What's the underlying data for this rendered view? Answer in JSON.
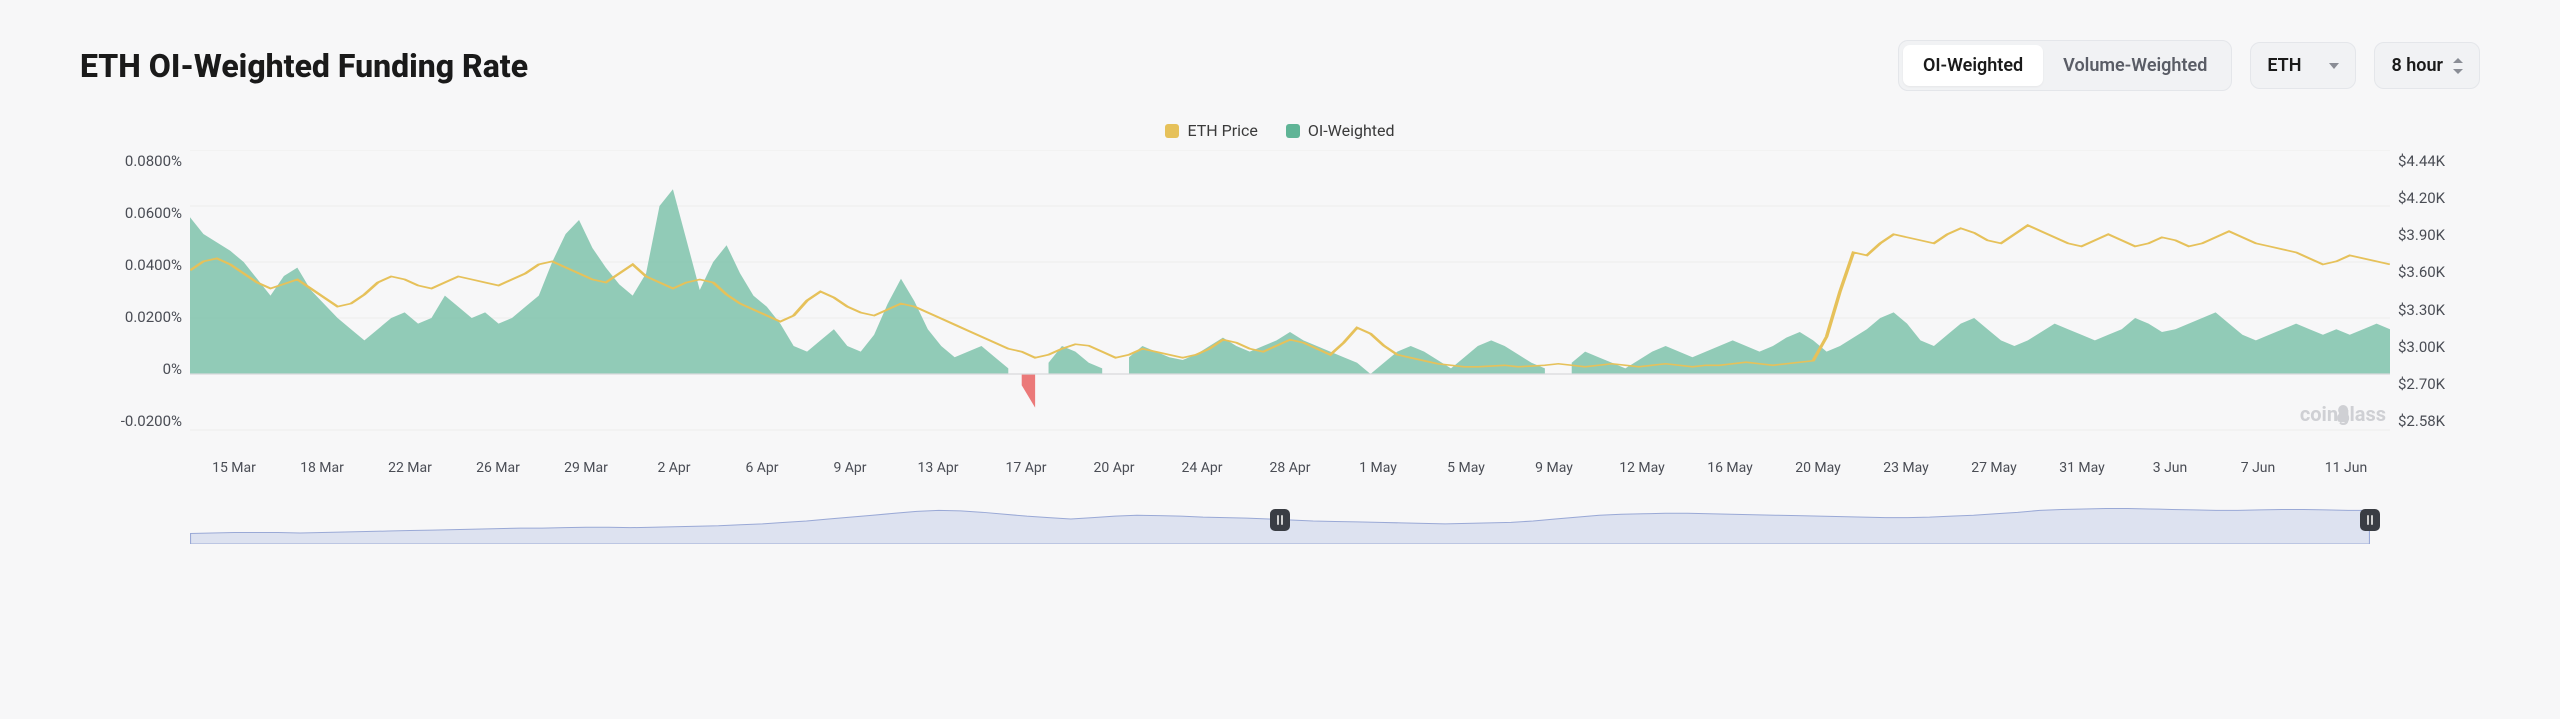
{
  "title": "ETH OI-Weighted Funding Rate",
  "controls": {
    "toggle": {
      "options": [
        "OI-Weighted",
        "Volume-Weighted"
      ],
      "active_index": 0
    },
    "symbol": {
      "value": "ETH"
    },
    "interval": {
      "value": "8 hour"
    }
  },
  "legend": [
    {
      "label": "ETH Price",
      "color": "#e6c15a"
    },
    {
      "label": "OI-Weighted",
      "color": "#5fb496"
    }
  ],
  "watermark": "coinglass",
  "chart": {
    "type": "combo-area-line",
    "background_color": "#f7f7f8",
    "grid_color": "#eceded",
    "baseline_color": "#d8d9dc",
    "left_axis": {
      "label_suffix": "%",
      "ticks": [
        "0.0800%",
        "0.0600%",
        "0.0400%",
        "0.0200%",
        "0%",
        "-0.0200%"
      ],
      "min": -0.02,
      "max": 0.08,
      "fontsize": 15,
      "color": "#4a4d55"
    },
    "right_axis": {
      "ticks": [
        "$4.44K",
        "$4.20K",
        "$3.90K",
        "$3.60K",
        "$3.30K",
        "$3.00K",
        "$2.70K",
        "$2.58K"
      ],
      "min": 2580,
      "max": 4440,
      "fontsize": 15,
      "color": "#4a4d55"
    },
    "x_axis": {
      "ticks": [
        "15 Mar",
        "18 Mar",
        "22 Mar",
        "26 Mar",
        "29 Mar",
        "2 Apr",
        "6 Apr",
        "9 Apr",
        "13 Apr",
        "17 Apr",
        "20 Apr",
        "24 Apr",
        "28 Apr",
        "1 May",
        "5 May",
        "9 May",
        "12 May",
        "16 May",
        "20 May",
        "23 May",
        "27 May",
        "31 May",
        "3 Jun",
        "7 Jun",
        "11 Jun"
      ],
      "fontsize": 14,
      "color": "#4a4d55"
    },
    "series": {
      "funding": {
        "type": "area",
        "axis": "left",
        "positive_fill": "#7fc3ac",
        "positive_fill_opacity": 0.85,
        "negative_fill": "#e96a6a",
        "negative_fill_opacity": 0.9,
        "stroke": "none",
        "values": [
          0.056,
          0.05,
          0.047,
          0.044,
          0.04,
          0.034,
          0.028,
          0.035,
          0.038,
          0.03,
          0.025,
          0.02,
          0.016,
          0.012,
          0.016,
          0.02,
          0.022,
          0.018,
          0.02,
          0.028,
          0.024,
          0.02,
          0.022,
          0.018,
          0.02,
          0.024,
          0.028,
          0.04,
          0.05,
          0.055,
          0.045,
          0.038,
          0.032,
          0.028,
          0.036,
          0.06,
          0.066,
          0.048,
          0.03,
          0.04,
          0.046,
          0.036,
          0.028,
          0.024,
          0.018,
          0.01,
          0.008,
          0.012,
          0.016,
          0.01,
          0.008,
          0.014,
          0.025,
          0.034,
          0.026,
          0.016,
          0.01,
          0.006,
          0.008,
          0.01,
          0.006,
          0.002,
          -0.004,
          -0.012,
          0.004,
          0.01,
          0.008,
          0.004,
          0.002,
          -0.004,
          0.006,
          0.01,
          0.008,
          0.006,
          0.005,
          0.007,
          0.01,
          0.013,
          0.01,
          0.008,
          0.01,
          0.012,
          0.015,
          0.012,
          0.01,
          0.008,
          0.006,
          0.004,
          0.0,
          0.004,
          0.008,
          0.01,
          0.008,
          0.005,
          0.002,
          0.006,
          0.01,
          0.012,
          0.01,
          0.007,
          0.004,
          0.002,
          -0.003,
          0.004,
          0.008,
          0.006,
          0.004,
          0.002,
          0.005,
          0.008,
          0.01,
          0.008,
          0.006,
          0.008,
          0.01,
          0.012,
          0.01,
          0.008,
          0.01,
          0.013,
          0.015,
          0.012,
          0.008,
          0.01,
          0.013,
          0.016,
          0.02,
          0.022,
          0.018,
          0.012,
          0.01,
          0.014,
          0.018,
          0.02,
          0.016,
          0.012,
          0.01,
          0.012,
          0.015,
          0.018,
          0.016,
          0.014,
          0.012,
          0.014,
          0.016,
          0.02,
          0.018,
          0.015,
          0.016,
          0.018,
          0.02,
          0.022,
          0.018,
          0.014,
          0.012,
          0.014,
          0.016,
          0.018,
          0.016,
          0.014,
          0.016,
          0.014,
          0.016,
          0.018,
          0.016
        ]
      },
      "price": {
        "type": "line",
        "axis": "right",
        "stroke": "#e6c15a",
        "stroke_width": 1.6,
        "values": [
          3640,
          3700,
          3720,
          3680,
          3620,
          3560,
          3520,
          3550,
          3580,
          3520,
          3460,
          3400,
          3420,
          3480,
          3560,
          3600,
          3580,
          3540,
          3520,
          3560,
          3600,
          3580,
          3560,
          3540,
          3580,
          3620,
          3680,
          3700,
          3660,
          3620,
          3580,
          3560,
          3620,
          3680,
          3600,
          3560,
          3520,
          3560,
          3580,
          3560,
          3480,
          3420,
          3380,
          3340,
          3300,
          3340,
          3440,
          3500,
          3460,
          3400,
          3360,
          3340,
          3380,
          3420,
          3400,
          3360,
          3320,
          3280,
          3240,
          3200,
          3160,
          3120,
          3100,
          3060,
          3080,
          3120,
          3150,
          3140,
          3100,
          3060,
          3080,
          3120,
          3100,
          3080,
          3060,
          3080,
          3120,
          3180,
          3160,
          3120,
          3100,
          3140,
          3180,
          3160,
          3120,
          3080,
          3160,
          3260,
          3220,
          3140,
          3080,
          3060,
          3040,
          3020,
          3010,
          3000,
          3000,
          3005,
          3010,
          3000,
          3005,
          3010,
          3020,
          3010,
          3000,
          3010,
          3020,
          3010,
          3000,
          3010,
          3020,
          3010,
          3000,
          3010,
          3010,
          3020,
          3030,
          3020,
          3010,
          3020,
          3030,
          3040,
          3200,
          3500,
          3760,
          3740,
          3820,
          3880,
          3860,
          3840,
          3820,
          3880,
          3920,
          3890,
          3840,
          3820,
          3880,
          3940,
          3900,
          3860,
          3820,
          3800,
          3840,
          3880,
          3840,
          3800,
          3820,
          3860,
          3840,
          3800,
          3820,
          3860,
          3900,
          3860,
          3820,
          3800,
          3780,
          3760,
          3720,
          3680,
          3700,
          3740,
          3720,
          3700,
          3680
        ]
      }
    }
  },
  "navigator": {
    "fill": "#c9d2ea",
    "fill_opacity": 0.55,
    "stroke": "#9aa9d6",
    "handle_color": "#3a3d44",
    "handles": [
      0.5,
      1.0
    ],
    "values": [
      0.22,
      0.23,
      0.24,
      0.24,
      0.24,
      0.23,
      0.24,
      0.25,
      0.26,
      0.27,
      0.28,
      0.29,
      0.3,
      0.31,
      0.32,
      0.33,
      0.33,
      0.34,
      0.35,
      0.35,
      0.34,
      0.35,
      0.36,
      0.37,
      0.38,
      0.4,
      0.42,
      0.45,
      0.48,
      0.52,
      0.56,
      0.6,
      0.64,
      0.68,
      0.7,
      0.69,
      0.66,
      0.62,
      0.58,
      0.55,
      0.52,
      0.55,
      0.58,
      0.6,
      0.59,
      0.58,
      0.56,
      0.55,
      0.54,
      0.52,
      0.5,
      0.48,
      0.47,
      0.46,
      0.45,
      0.44,
      0.43,
      0.42,
      0.43,
      0.44,
      0.45,
      0.48,
      0.52,
      0.56,
      0.6,
      0.62,
      0.63,
      0.64,
      0.64,
      0.63,
      0.62,
      0.61,
      0.6,
      0.59,
      0.58,
      0.57,
      0.56,
      0.55,
      0.55,
      0.56,
      0.58,
      0.6,
      0.63,
      0.66,
      0.7,
      0.72,
      0.73,
      0.74,
      0.74,
      0.73,
      0.72,
      0.71,
      0.7,
      0.7,
      0.71,
      0.72,
      0.72,
      0.71,
      0.7,
      0.7
    ]
  }
}
